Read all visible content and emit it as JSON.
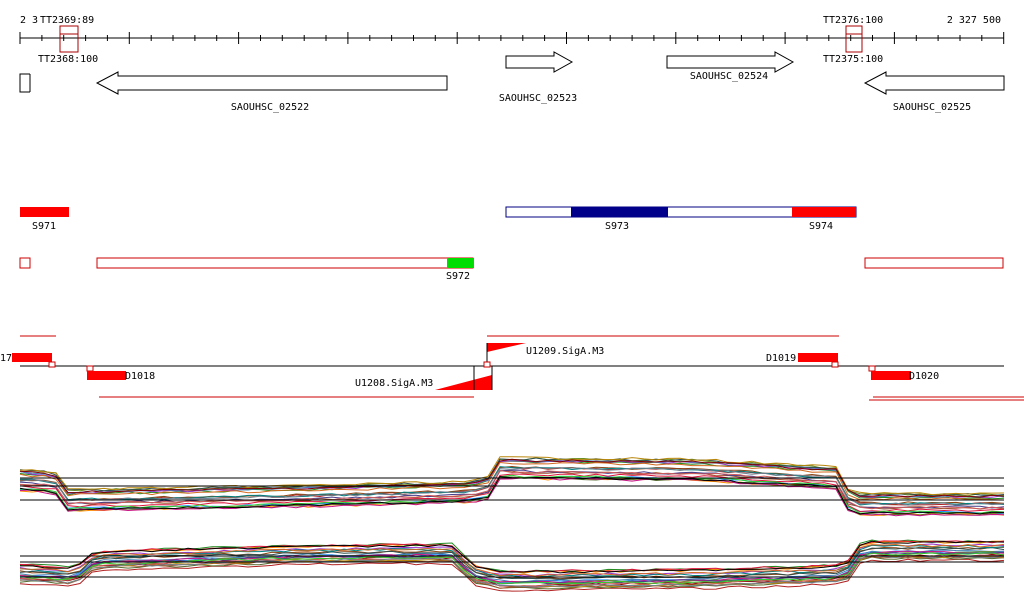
{
  "ruler": {
    "left_label": "2 3",
    "overlap_label": "TT2369:89",
    "right_label": "2 327 500"
  },
  "terminators": [
    {
      "id": "tt-left",
      "top_label": "",
      "bottom_label": "TT2368:100"
    },
    {
      "id": "tt-right",
      "top_label": "TT2376:100",
      "bottom_label": "TT2375:100"
    }
  ],
  "genes": [
    {
      "id": "SAOUHSC_02522",
      "label": "SAOUHSC_02522",
      "strand": "-"
    },
    {
      "id": "SAOUHSC_02523",
      "label": "SAOUHSC_02523",
      "strand": "+"
    },
    {
      "id": "SAOUHSC_02524",
      "label": "SAOUHSC_02524",
      "strand": "+"
    },
    {
      "id": "SAOUHSC_02525",
      "label": "SAOUHSC_02525",
      "strand": "-"
    }
  ],
  "segments_plus": [
    {
      "id": "S971",
      "label": "S971"
    },
    {
      "id": "S973",
      "label": "S973"
    },
    {
      "id": "S974",
      "label": "S974"
    }
  ],
  "segments_minus": [
    {
      "id": "S972",
      "label": "S972"
    }
  ],
  "promoters": [
    {
      "id": "D1017",
      "label": "17"
    },
    {
      "id": "D1018",
      "label": "D1018"
    },
    {
      "id": "U1209",
      "label": "U1209.SigA.M3"
    },
    {
      "id": "U1208",
      "label": "U1208.SigA.M3"
    },
    {
      "id": "D1019",
      "label": "D1019"
    },
    {
      "id": "D1020",
      "label": "D1020"
    }
  ],
  "colors": {
    "segment_red": "#ff0000",
    "segment_blue": "#00008b",
    "segment_green": "#00dd00",
    "outline_blue": "#000080",
    "outline_red": "#cc0000",
    "tt_box": "#aa0000"
  }
}
